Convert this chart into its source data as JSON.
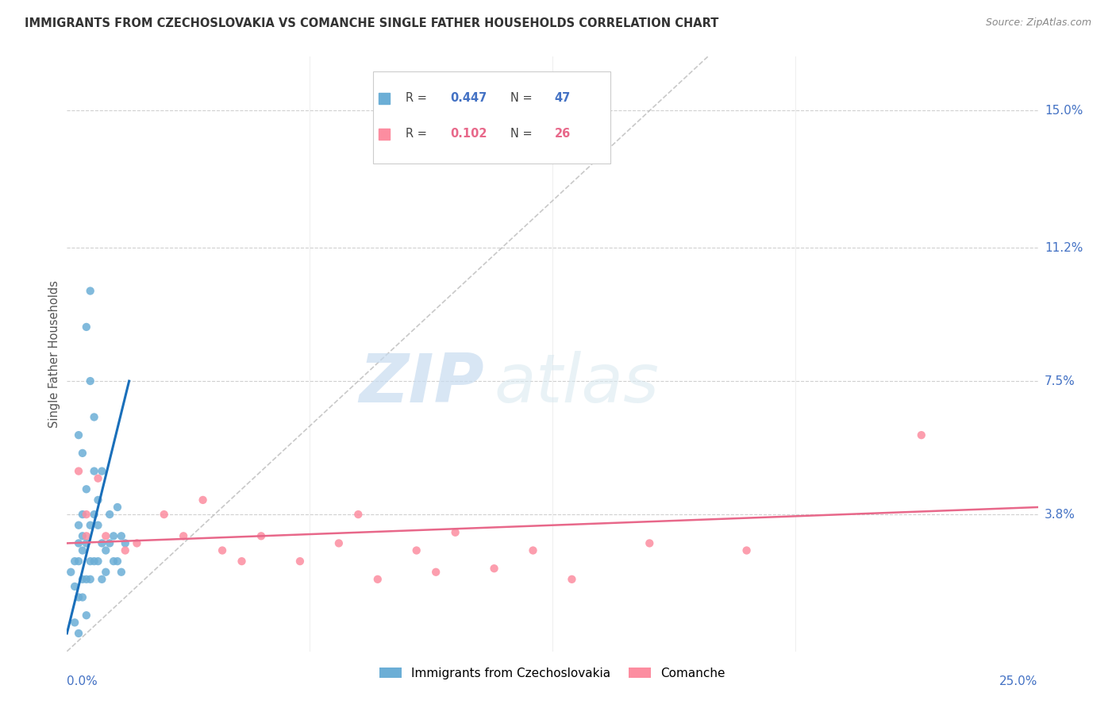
{
  "title": "IMMIGRANTS FROM CZECHOSLOVAKIA VS COMANCHE SINGLE FATHER HOUSEHOLDS CORRELATION CHART",
  "source": "Source: ZipAtlas.com",
  "ylabel": "Single Father Households",
  "ytick_labels": [
    "15.0%",
    "11.2%",
    "7.5%",
    "3.8%"
  ],
  "ytick_vals": [
    0.15,
    0.112,
    0.075,
    0.038
  ],
  "xtick_labels": [
    "0.0%",
    "25.0%"
  ],
  "xtick_vals": [
    0.0,
    0.25
  ],
  "xrange": [
    0.0,
    0.25
  ],
  "yrange": [
    0.0,
    0.165
  ],
  "legend_label1": "Immigrants from Czechoslovakia",
  "legend_label2": "Comanche",
  "R1": "0.447",
  "N1": "47",
  "R2": "0.102",
  "N2": "26",
  "color1": "#6baed6",
  "color2": "#fc8da0",
  "trendline1_color": "#1a6fba",
  "trendline2_color": "#e8688a",
  "diagonal_color": "#bbbbbb",
  "watermark_zip": "ZIP",
  "watermark_atlas": "atlas",
  "blue_scatter_x": [
    0.001,
    0.002,
    0.002,
    0.002,
    0.003,
    0.003,
    0.003,
    0.003,
    0.003,
    0.004,
    0.004,
    0.004,
    0.004,
    0.004,
    0.005,
    0.005,
    0.005,
    0.005,
    0.006,
    0.006,
    0.006,
    0.006,
    0.007,
    0.007,
    0.007,
    0.008,
    0.008,
    0.008,
    0.009,
    0.009,
    0.009,
    0.01,
    0.01,
    0.011,
    0.011,
    0.012,
    0.012,
    0.013,
    0.013,
    0.014,
    0.014,
    0.015,
    0.003,
    0.004,
    0.005,
    0.006,
    0.007
  ],
  "blue_scatter_y": [
    0.022,
    0.008,
    0.018,
    0.025,
    0.005,
    0.015,
    0.025,
    0.03,
    0.035,
    0.015,
    0.02,
    0.028,
    0.032,
    0.038,
    0.01,
    0.02,
    0.03,
    0.09,
    0.02,
    0.025,
    0.035,
    0.075,
    0.025,
    0.038,
    0.05,
    0.025,
    0.035,
    0.042,
    0.02,
    0.03,
    0.05,
    0.022,
    0.028,
    0.03,
    0.038,
    0.025,
    0.032,
    0.025,
    0.04,
    0.022,
    0.032,
    0.03,
    0.06,
    0.055,
    0.045,
    0.1,
    0.065
  ],
  "pink_scatter_x": [
    0.003,
    0.005,
    0.01,
    0.015,
    0.018,
    0.025,
    0.03,
    0.035,
    0.04,
    0.045,
    0.05,
    0.06,
    0.07,
    0.075,
    0.08,
    0.09,
    0.095,
    0.1,
    0.11,
    0.12,
    0.13,
    0.15,
    0.175,
    0.22,
    0.005,
    0.008
  ],
  "pink_scatter_y": [
    0.05,
    0.038,
    0.032,
    0.028,
    0.03,
    0.038,
    0.032,
    0.042,
    0.028,
    0.025,
    0.032,
    0.025,
    0.03,
    0.038,
    0.02,
    0.028,
    0.022,
    0.033,
    0.023,
    0.028,
    0.02,
    0.03,
    0.028,
    0.06,
    0.032,
    0.048
  ],
  "trendline1_x": [
    0.0,
    0.016
  ],
  "trendline1_y": [
    0.005,
    0.075
  ],
  "trendline2_x": [
    0.0,
    0.25
  ],
  "trendline2_y": [
    0.03,
    0.04
  ]
}
